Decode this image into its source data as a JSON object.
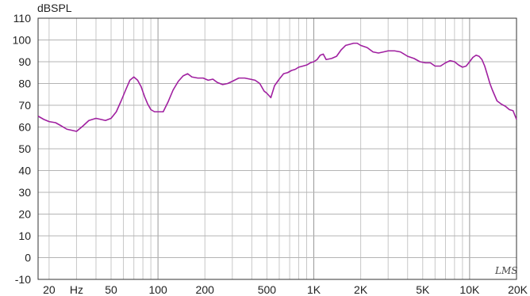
{
  "chart_data": {
    "type": "line",
    "title": "",
    "xlabel": "",
    "ylabel": "dBSPL",
    "x_scale": "log",
    "xlim": [
      17,
      20000
    ],
    "ylim": [
      -10,
      110
    ],
    "grid": true,
    "y_ticks": [
      -10,
      0,
      10,
      20,
      30,
      40,
      50,
      60,
      70,
      80,
      90,
      100,
      110
    ],
    "x_tick_labels": [
      {
        "value": 20,
        "label": "20"
      },
      {
        "value": 30,
        "label": "Hz"
      },
      {
        "value": 50,
        "label": "50"
      },
      {
        "value": 100,
        "label": "100"
      },
      {
        "value": 200,
        "label": "200"
      },
      {
        "value": 500,
        "label": "500"
      },
      {
        "value": 1000,
        "label": "1K"
      },
      {
        "value": 2000,
        "label": "2K"
      },
      {
        "value": 5000,
        "label": "5K"
      },
      {
        "value": 10000,
        "label": "10K"
      },
      {
        "value": 20000,
        "label": "20K"
      }
    ],
    "watermark": "LMS",
    "series": [
      {
        "color": "#a020a0",
        "x": [
          17,
          18.5,
          20,
          22,
          24,
          26,
          28,
          30,
          33,
          36,
          40,
          43,
          46,
          50,
          54,
          58,
          62,
          66,
          70,
          74,
          78,
          82,
          86,
          90,
          95,
          100,
          108,
          116,
          125,
          135,
          145,
          155,
          165,
          180,
          195,
          210,
          225,
          240,
          260,
          280,
          300,
          330,
          360,
          390,
          420,
          450,
          480,
          500,
          530,
          560,
          600,
          640,
          680,
          720,
          760,
          800,
          850,
          900,
          950,
          1000,
          1050,
          1100,
          1150,
          1200,
          1300,
          1400,
          1500,
          1600,
          1700,
          1800,
          1900,
          2000,
          2200,
          2400,
          2600,
          2800,
          3000,
          3300,
          3600,
          4000,
          4400,
          4800,
          5200,
          5600,
          6000,
          6500,
          7000,
          7500,
          8000,
          8500,
          9000,
          9500,
          10000,
          10500,
          11000,
          11500,
          12000,
          12500,
          13000,
          13500,
          14000,
          15000,
          16000,
          17000,
          18000,
          19000,
          20000
        ],
        "y": [
          65,
          63.5,
          62.5,
          62,
          60.5,
          59,
          58.5,
          58,
          60.5,
          63,
          64,
          63.5,
          63,
          64,
          67,
          72,
          77,
          81.5,
          83,
          81.5,
          78.5,
          74,
          70.5,
          68,
          67,
          67,
          67,
          71.5,
          77,
          81,
          83.5,
          84.5,
          83,
          82.5,
          82.5,
          81.5,
          82,
          80.5,
          79.5,
          80,
          81,
          82.5,
          82.5,
          82,
          81.5,
          80,
          76.5,
          75.5,
          73.5,
          79,
          82,
          84.5,
          85,
          86,
          86.5,
          87.5,
          88,
          88.5,
          89.5,
          90,
          91,
          93,
          93.5,
          91,
          91.5,
          92.5,
          95.5,
          97.5,
          98,
          98.5,
          98.5,
          97.5,
          96.5,
          94.5,
          94,
          94.5,
          95,
          95,
          94.5,
          92.5,
          91.5,
          90,
          89.5,
          89.5,
          88,
          88,
          89.5,
          90.5,
          90,
          88.5,
          87.5,
          88,
          90,
          92,
          93,
          92.5,
          91,
          88,
          84,
          80,
          77,
          72,
          70.5,
          69.5,
          68,
          67.5,
          63.5
        ]
      }
    ]
  }
}
